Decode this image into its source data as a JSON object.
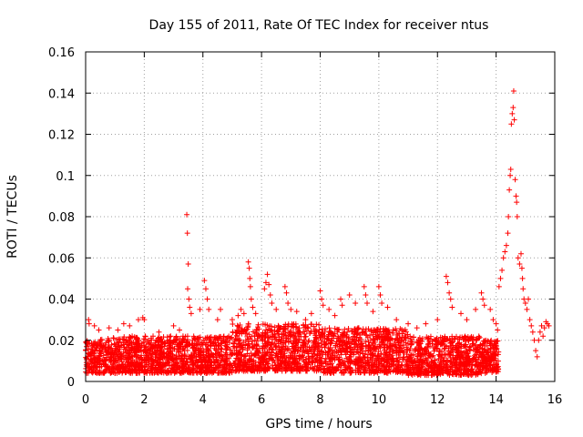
{
  "chart_data": {
    "type": "scatter",
    "title": "Day 155 of 2011, Rate Of TEC Index for receiver ntus",
    "xlabel": "GPS time / hours",
    "ylabel": "ROTI / TECUs",
    "xlim": [
      0,
      16
    ],
    "ylim": [
      0,
      0.16
    ],
    "xticks": [
      "0",
      "2",
      "4",
      "6",
      "8",
      "10",
      "12",
      "14",
      "16"
    ],
    "yticks": [
      "0",
      "0.02",
      "0.04",
      "0.06",
      "0.08",
      "0.1",
      "0.12",
      "0.14",
      "0.16"
    ],
    "grid": true,
    "marker": "plus",
    "series_color": "#ff0000",
    "series": [
      {
        "name": "ROTI",
        "baseline_segments": [
          {
            "x_start": 0.0,
            "x_end": 0.5,
            "y_min": 0.004,
            "y_max": 0.02
          },
          {
            "x_start": 0.5,
            "x_end": 2.5,
            "y_min": 0.004,
            "y_max": 0.022
          },
          {
            "x_start": 2.5,
            "x_end": 5.0,
            "y_min": 0.004,
            "y_max": 0.022
          },
          {
            "x_start": 5.0,
            "x_end": 8.0,
            "y_min": 0.005,
            "y_max": 0.028
          },
          {
            "x_start": 8.0,
            "x_end": 11.0,
            "y_min": 0.004,
            "y_max": 0.026
          },
          {
            "x_start": 11.0,
            "x_end": 13.5,
            "y_min": 0.003,
            "y_max": 0.022
          },
          {
            "x_start": 13.5,
            "x_end": 14.1,
            "y_min": 0.004,
            "y_max": 0.02
          }
        ],
        "points": [
          [
            0.1,
            0.03
          ],
          [
            0.12,
            0.028
          ],
          [
            0.3,
            0.027
          ],
          [
            0.45,
            0.025
          ],
          [
            0.8,
            0.026
          ],
          [
            1.1,
            0.025
          ],
          [
            1.3,
            0.028
          ],
          [
            1.5,
            0.027
          ],
          [
            1.8,
            0.03
          ],
          [
            1.95,
            0.031
          ],
          [
            2.0,
            0.03
          ],
          [
            2.3,
            0.022
          ],
          [
            2.5,
            0.024
          ],
          [
            2.9,
            0.022
          ],
          [
            3.0,
            0.027
          ],
          [
            3.2,
            0.025
          ],
          [
            3.45,
            0.081
          ],
          [
            3.47,
            0.072
          ],
          [
            3.5,
            0.057
          ],
          [
            3.48,
            0.045
          ],
          [
            3.52,
            0.04
          ],
          [
            3.55,
            0.036
          ],
          [
            3.6,
            0.033
          ],
          [
            3.9,
            0.035
          ],
          [
            4.05,
            0.049
          ],
          [
            4.1,
            0.045
          ],
          [
            4.15,
            0.04
          ],
          [
            4.2,
            0.035
          ],
          [
            4.5,
            0.03
          ],
          [
            4.6,
            0.035
          ],
          [
            5.0,
            0.03
          ],
          [
            5.2,
            0.032
          ],
          [
            5.3,
            0.035
          ],
          [
            5.4,
            0.033
          ],
          [
            5.55,
            0.058
          ],
          [
            5.58,
            0.055
          ],
          [
            5.6,
            0.05
          ],
          [
            5.62,
            0.046
          ],
          [
            5.65,
            0.04
          ],
          [
            5.7,
            0.036
          ],
          [
            5.8,
            0.033
          ],
          [
            6.1,
            0.045
          ],
          [
            6.15,
            0.048
          ],
          [
            6.2,
            0.052
          ],
          [
            6.25,
            0.047
          ],
          [
            6.3,
            0.042
          ],
          [
            6.35,
            0.038
          ],
          [
            6.5,
            0.035
          ],
          [
            6.8,
            0.046
          ],
          [
            6.85,
            0.043
          ],
          [
            6.9,
            0.038
          ],
          [
            7.0,
            0.035
          ],
          [
            7.2,
            0.034
          ],
          [
            7.5,
            0.03
          ],
          [
            7.7,
            0.033
          ],
          [
            8.0,
            0.044
          ],
          [
            8.05,
            0.04
          ],
          [
            8.1,
            0.037
          ],
          [
            8.3,
            0.035
          ],
          [
            8.5,
            0.032
          ],
          [
            8.7,
            0.04
          ],
          [
            8.75,
            0.037
          ],
          [
            9.0,
            0.042
          ],
          [
            9.2,
            0.038
          ],
          [
            9.5,
            0.046
          ],
          [
            9.55,
            0.042
          ],
          [
            9.6,
            0.038
          ],
          [
            9.8,
            0.034
          ],
          [
            10.0,
            0.046
          ],
          [
            10.05,
            0.042
          ],
          [
            10.1,
            0.038
          ],
          [
            10.3,
            0.036
          ],
          [
            10.6,
            0.03
          ],
          [
            11.0,
            0.028
          ],
          [
            11.3,
            0.026
          ],
          [
            11.6,
            0.028
          ],
          [
            12.0,
            0.03
          ],
          [
            12.3,
            0.051
          ],
          [
            12.35,
            0.048
          ],
          [
            12.4,
            0.043
          ],
          [
            12.45,
            0.04
          ],
          [
            12.5,
            0.036
          ],
          [
            12.8,
            0.033
          ],
          [
            13.0,
            0.03
          ],
          [
            13.3,
            0.035
          ],
          [
            13.5,
            0.043
          ],
          [
            13.55,
            0.04
          ],
          [
            13.6,
            0.037
          ],
          [
            13.8,
            0.035
          ],
          [
            13.9,
            0.03
          ],
          [
            14.0,
            0.028
          ],
          [
            14.05,
            0.025
          ],
          [
            14.1,
            0.046
          ],
          [
            14.15,
            0.05
          ],
          [
            14.2,
            0.054
          ],
          [
            14.25,
            0.06
          ],
          [
            14.3,
            0.063
          ],
          [
            14.35,
            0.066
          ],
          [
            14.4,
            0.072
          ],
          [
            14.42,
            0.08
          ],
          [
            14.45,
            0.093
          ],
          [
            14.48,
            0.1
          ],
          [
            14.5,
            0.103
          ],
          [
            14.52,
            0.125
          ],
          [
            14.55,
            0.13
          ],
          [
            14.58,
            0.133
          ],
          [
            14.6,
            0.141
          ],
          [
            14.62,
            0.127
          ],
          [
            14.65,
            0.098
          ],
          [
            14.68,
            0.09
          ],
          [
            14.7,
            0.087
          ],
          [
            14.72,
            0.08
          ],
          [
            14.75,
            0.06
          ],
          [
            14.8,
            0.057
          ],
          [
            14.85,
            0.062
          ],
          [
            14.88,
            0.055
          ],
          [
            14.9,
            0.05
          ],
          [
            14.92,
            0.045
          ],
          [
            14.95,
            0.04
          ],
          [
            15.0,
            0.038
          ],
          [
            15.05,
            0.035
          ],
          [
            15.1,
            0.04
          ],
          [
            15.15,
            0.03
          ],
          [
            15.2,
            0.027
          ],
          [
            15.25,
            0.024
          ],
          [
            15.3,
            0.02
          ],
          [
            15.35,
            0.015
          ],
          [
            15.4,
            0.012
          ],
          [
            15.45,
            0.02
          ],
          [
            15.5,
            0.024
          ],
          [
            15.55,
            0.027
          ],
          [
            15.6,
            0.022
          ],
          [
            15.65,
            0.026
          ],
          [
            15.7,
            0.029
          ],
          [
            15.75,
            0.028
          ],
          [
            15.8,
            0.027
          ]
        ]
      }
    ]
  }
}
